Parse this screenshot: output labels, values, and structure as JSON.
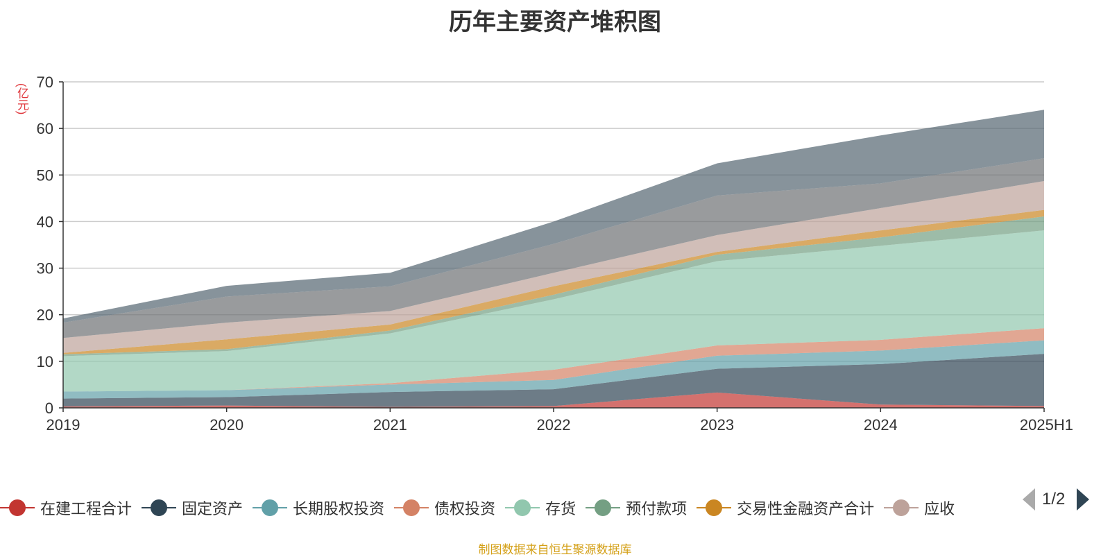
{
  "page": {
    "source_note": "制图数据来自恒生聚源数据库",
    "pager_text": "1/2"
  },
  "chart_data": {
    "type": "area",
    "stacked": true,
    "title": "历年主要资产堆积图",
    "ylabel": "(亿元)",
    "xlabel": "",
    "categories": [
      "2019",
      "2020",
      "2021",
      "2022",
      "2023",
      "2024",
      "2025H1"
    ],
    "ylim": [
      0,
      70
    ],
    "yticks": [
      0,
      10,
      20,
      30,
      40,
      50,
      60,
      70
    ],
    "grid": true,
    "legend_position": "bottom",
    "series": [
      {
        "name": "在建工程合计",
        "color": "#c23531",
        "legend_color": "#c23531",
        "values": [
          0.3,
          0.5,
          0.2,
          0.4,
          3.3,
          0.7,
          0.4
        ]
      },
      {
        "name": "固定资产",
        "color": "#2f4554",
        "legend_color": "#2f4554",
        "values": [
          1.7,
          1.8,
          3.2,
          3.6,
          5.1,
          8.7,
          11.2
        ]
      },
      {
        "name": "长期股权投资",
        "color": "#61a0a8",
        "legend_color": "#61a0a8",
        "values": [
          1.5,
          1.5,
          1.6,
          2.0,
          2.8,
          2.9,
          2.9
        ]
      },
      {
        "name": "债权投资",
        "color": "#d48265",
        "legend_color": "#d48265",
        "values": [
          0,
          0,
          0.3,
          2.2,
          2.2,
          2.3,
          2.6
        ]
      },
      {
        "name": "存货",
        "color": "#91c7ae",
        "legend_color": "#91c7ae",
        "values": [
          7.6,
          8.4,
          10.7,
          15.1,
          18.1,
          20.2,
          21.0
        ]
      },
      {
        "name": "预付款项",
        "color": "#749f83",
        "legend_color": "#749f83",
        "values": [
          0.4,
          0.4,
          0.6,
          1.0,
          1.4,
          1.8,
          3.0
        ]
      },
      {
        "name": "交易性金融资产合计",
        "color": "#ca8622",
        "legend_color": "#ca8622",
        "values": [
          0.3,
          2.1,
          1.3,
          1.8,
          0.6,
          1.5,
          1.4
        ]
      },
      {
        "name": "应收",
        "color": "#bda29a",
        "legend_color": "#bda29a",
        "values": [
          3.2,
          3.6,
          2.9,
          2.9,
          3.6,
          4.8,
          6.2
        ]
      },
      {
        "name": "",
        "color": "#6e7074",
        "values": [
          3.3,
          5.6,
          5.3,
          6.2,
          8.5,
          5.3,
          4.9
        ]
      },
      {
        "name": "",
        "color": "#546570",
        "values": [
          0.9,
          2.3,
          2.9,
          4.8,
          6.9,
          10.3,
          10.4
        ]
      }
    ]
  }
}
